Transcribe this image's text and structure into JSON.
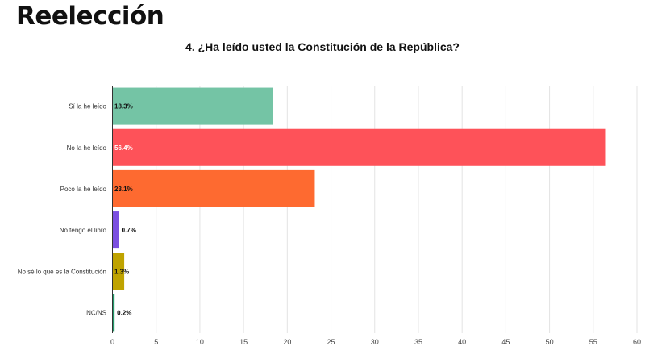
{
  "page": {
    "heading": "Reelección"
  },
  "chart_data": {
    "type": "bar",
    "orientation": "horizontal",
    "title": "4. ¿Ha leído usted la Constitución de la República?",
    "categories": [
      "Sí la he leído",
      "No la he leído",
      "Poco la he leído",
      "No tengo el libro",
      "No sé lo que es la Constitución",
      "NC/NS"
    ],
    "values": [
      18.3,
      56.4,
      23.1,
      0.7,
      1.3,
      0.2
    ],
    "value_labels": [
      "18.3%",
      "56.4%",
      "23.1%",
      "0.7%",
      "1.3%",
      "0.2%"
    ],
    "colors": [
      "#74c4a5",
      "#fe5259",
      "#fe6a30",
      "#7b4fe0",
      "#bfa300",
      "#239a6a"
    ],
    "value_label_colors": [
      "#111111",
      "#ffffff",
      "#111111",
      "#111111",
      "#111111",
      "#111111"
    ],
    "xlim": [
      0,
      60
    ],
    "xticks": [
      0,
      5,
      10,
      15,
      20,
      25,
      30,
      35,
      40,
      45,
      50,
      55,
      60
    ],
    "grid": true,
    "legend": "none"
  }
}
